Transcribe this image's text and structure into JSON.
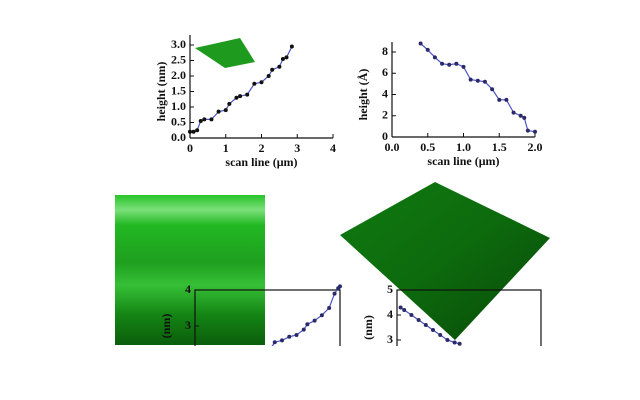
{
  "chart_data": [
    {
      "type": "line",
      "x_label": "scan line (μm)",
      "y_label": "height (nm)",
      "color": "#111111",
      "x": [
        0,
        0.1,
        0.2,
        0.3,
        0.4,
        0.6,
        0.8,
        1.0,
        1.1,
        1.3,
        1.4,
        1.6,
        1.8,
        2.0,
        2.2,
        2.3,
        2.5,
        2.6,
        2.7,
        2.85
      ],
      "values": [
        0.2,
        0.2,
        0.25,
        0.55,
        0.6,
        0.6,
        0.85,
        0.9,
        1.1,
        1.3,
        1.35,
        1.4,
        1.75,
        1.8,
        2.0,
        2.2,
        2.3,
        2.55,
        2.6,
        2.95
      ],
      "xlim": [
        0,
        4
      ],
      "ylim": [
        0,
        3
      ],
      "xticks": [
        0,
        1,
        2,
        3,
        4
      ],
      "yticks": [
        {
          "value": 0,
          "label": "0.0"
        },
        {
          "value": 0.5,
          "label": "0.5"
        },
        {
          "value": 1,
          "label": "1.0"
        },
        {
          "value": 1.5,
          "label": "1.5"
        },
        {
          "value": 2,
          "label": "2.0"
        },
        {
          "value": 2.5,
          "label": "2.5"
        },
        {
          "value": 3,
          "label": "3.0"
        }
      ]
    },
    {
      "type": "line",
      "x_label": "scan line (μm)",
      "y_label": "height (Å)",
      "color": "#2a2a6a",
      "x": [
        0.4,
        0.5,
        0.6,
        0.7,
        0.8,
        0.9,
        1.0,
        1.1,
        1.2,
        1.3,
        1.4,
        1.5,
        1.6,
        1.7,
        1.8,
        1.85,
        1.9,
        2.0
      ],
      "values": [
        8.8,
        8.2,
        7.5,
        6.9,
        6.8,
        6.9,
        6.6,
        5.4,
        5.3,
        5.2,
        4.5,
        3.5,
        3.5,
        2.3,
        2.0,
        1.8,
        0.6,
        0.5
      ],
      "xlim": [
        0,
        2
      ],
      "ylim": [
        0,
        8
      ],
      "xticks": [
        {
          "value": 0,
          "label": "0.0"
        },
        {
          "value": 0.5,
          "label": "0.5"
        },
        {
          "value": 1,
          "label": "1.0"
        },
        {
          "value": 1.5,
          "label": "1.5"
        },
        {
          "value": 2,
          "label": "2.0"
        }
      ],
      "yticks": [
        0,
        2,
        4,
        6,
        8
      ]
    },
    {
      "type": "line",
      "y_label": "(nm)",
      "color": "#2a2a6a",
      "x": [
        2.07,
        2.2,
        2.4,
        2.6,
        2.8,
        3.0,
        3.1,
        3.3,
        3.5,
        3.7,
        3.85,
        3.95,
        4.0
      ],
      "values": [
        2.35,
        2.55,
        2.6,
        2.7,
        2.75,
        2.9,
        3.05,
        3.15,
        3.3,
        3.5,
        3.9,
        4.05,
        4.1
      ],
      "xlim": [
        0,
        4
      ],
      "ylim": [
        2,
        4
      ],
      "yticks": [
        3,
        4
      ]
    },
    {
      "type": "line",
      "y_label": "(nm)",
      "color": "#2a2a6a",
      "x": [
        0.05,
        0.1,
        0.2,
        0.3,
        0.4,
        0.5,
        0.6,
        0.7,
        0.8,
        0.87
      ],
      "values": [
        4.3,
        4.2,
        4.0,
        3.8,
        3.6,
        3.4,
        3.2,
        3.0,
        2.9,
        2.85
      ],
      "xlim": [
        0,
        2
      ],
      "ylim": [
        2,
        5
      ],
      "yticks": [
        3,
        4,
        5
      ]
    }
  ]
}
